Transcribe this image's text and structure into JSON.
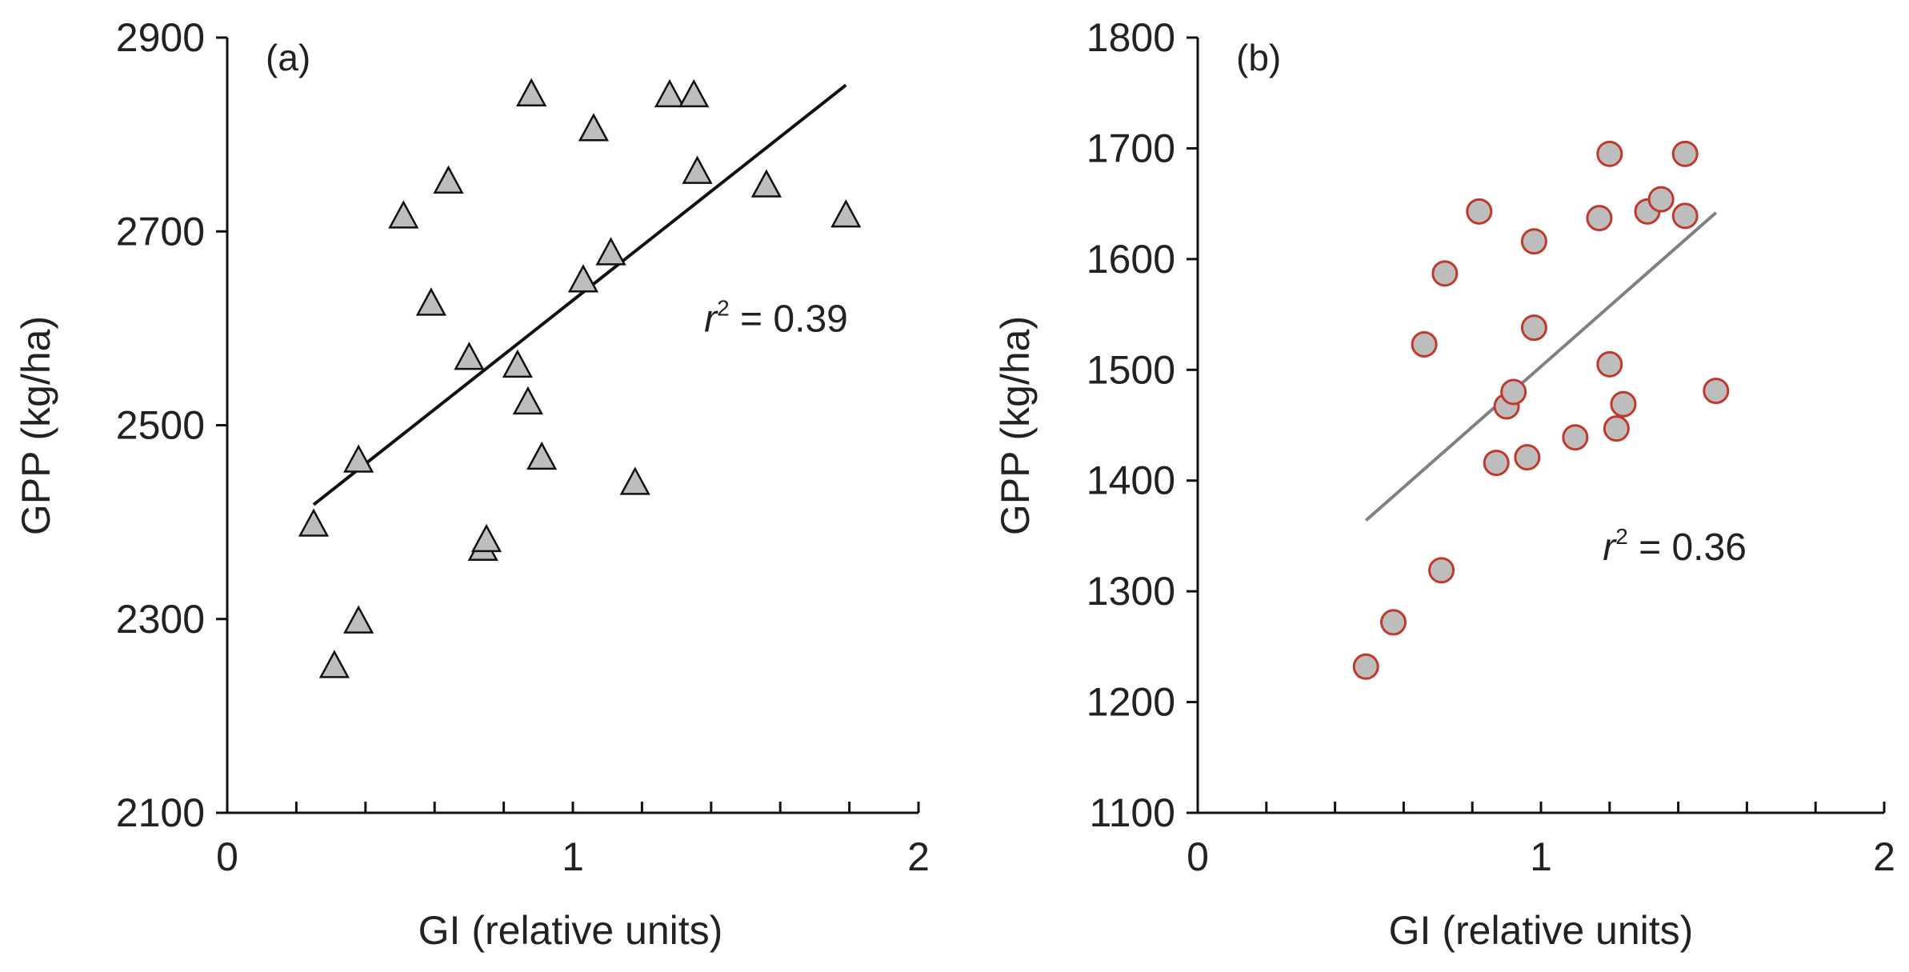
{
  "chart_data": [
    {
      "type": "scatter",
      "panel_label": "(a)",
      "xlabel": "GI (relative units)",
      "ylabel": "GPP (kg/ha)",
      "xlim": [
        0,
        2
      ],
      "ylim": [
        2100,
        2900
      ],
      "x_ticks": [
        0,
        1,
        2
      ],
      "x_minor_ticks": [
        0.2,
        0.4,
        0.6,
        0.8,
        1.2,
        1.4,
        1.6,
        1.8
      ],
      "y_ticks": [
        2100,
        2300,
        2500,
        2700,
        2900
      ],
      "grid": false,
      "marker": "triangle",
      "marker_fill": "#bdbdbd",
      "marker_stroke": "#111111",
      "line_color": "#111111",
      "points": [
        {
          "x": 0.25,
          "y": 2398
        },
        {
          "x": 0.31,
          "y": 2252
        },
        {
          "x": 0.38,
          "y": 2298
        },
        {
          "x": 0.38,
          "y": 2464
        },
        {
          "x": 0.51,
          "y": 2716
        },
        {
          "x": 0.59,
          "y": 2626
        },
        {
          "x": 0.64,
          "y": 2752
        },
        {
          "x": 0.7,
          "y": 2570
        },
        {
          "x": 0.74,
          "y": 2373
        },
        {
          "x": 0.75,
          "y": 2382
        },
        {
          "x": 0.84,
          "y": 2562
        },
        {
          "x": 0.87,
          "y": 2524
        },
        {
          "x": 0.88,
          "y": 2842
        },
        {
          "x": 0.91,
          "y": 2467
        },
        {
          "x": 1.03,
          "y": 2650
        },
        {
          "x": 1.06,
          "y": 2806
        },
        {
          "x": 1.11,
          "y": 2678
        },
        {
          "x": 1.18,
          "y": 2441
        },
        {
          "x": 1.28,
          "y": 2841
        },
        {
          "x": 1.35,
          "y": 2841
        },
        {
          "x": 1.36,
          "y": 2762
        },
        {
          "x": 1.56,
          "y": 2748
        },
        {
          "x": 1.79,
          "y": 2717
        }
      ],
      "trendline": {
        "x": [
          0.25,
          1.79
        ],
        "y": [
          2418,
          2851
        ]
      },
      "annotation": {
        "prefix": "r",
        "sup": "2",
        "text": " = 0.39",
        "x": 1.38,
        "y": 2610
      }
    },
    {
      "type": "scatter",
      "panel_label": "(b)",
      "xlabel": "GI (relative units)",
      "ylabel": "GPP (kg/ha)",
      "xlim": [
        0,
        2
      ],
      "ylim": [
        1100,
        1800
      ],
      "x_ticks": [
        0,
        1,
        2
      ],
      "x_minor_ticks": [
        0.2,
        0.4,
        0.6,
        0.8,
        1.2,
        1.4,
        1.6,
        1.8
      ],
      "y_ticks": [
        1100,
        1200,
        1300,
        1400,
        1500,
        1600,
        1700,
        1800
      ],
      "grid": false,
      "marker": "circle",
      "marker_fill": "#bdbdbd",
      "marker_stroke": "#c0392b",
      "line_color": "#808080",
      "points": [
        {
          "x": 0.49,
          "y": 1232
        },
        {
          "x": 0.57,
          "y": 1272
        },
        {
          "x": 0.66,
          "y": 1523
        },
        {
          "x": 0.71,
          "y": 1319
        },
        {
          "x": 0.72,
          "y": 1587
        },
        {
          "x": 0.82,
          "y": 1643
        },
        {
          "x": 0.87,
          "y": 1416
        },
        {
          "x": 0.9,
          "y": 1467
        },
        {
          "x": 0.92,
          "y": 1480
        },
        {
          "x": 0.96,
          "y": 1421
        },
        {
          "x": 0.98,
          "y": 1616
        },
        {
          "x": 0.98,
          "y": 1538
        },
        {
          "x": 1.1,
          "y": 1439
        },
        {
          "x": 1.17,
          "y": 1637
        },
        {
          "x": 1.2,
          "y": 1695
        },
        {
          "x": 1.2,
          "y": 1505
        },
        {
          "x": 1.22,
          "y": 1447
        },
        {
          "x": 1.24,
          "y": 1469
        },
        {
          "x": 1.31,
          "y": 1643
        },
        {
          "x": 1.35,
          "y": 1654
        },
        {
          "x": 1.42,
          "y": 1695
        },
        {
          "x": 1.42,
          "y": 1639
        },
        {
          "x": 1.51,
          "y": 1481
        }
      ],
      "trendline": {
        "x": [
          0.49,
          1.51
        ],
        "y": [
          1364,
          1642
        ]
      },
      "annotation": {
        "prefix": "r",
        "sup": "2",
        "text": " = 0.36",
        "x": 1.18,
        "y": 1340
      }
    }
  ]
}
